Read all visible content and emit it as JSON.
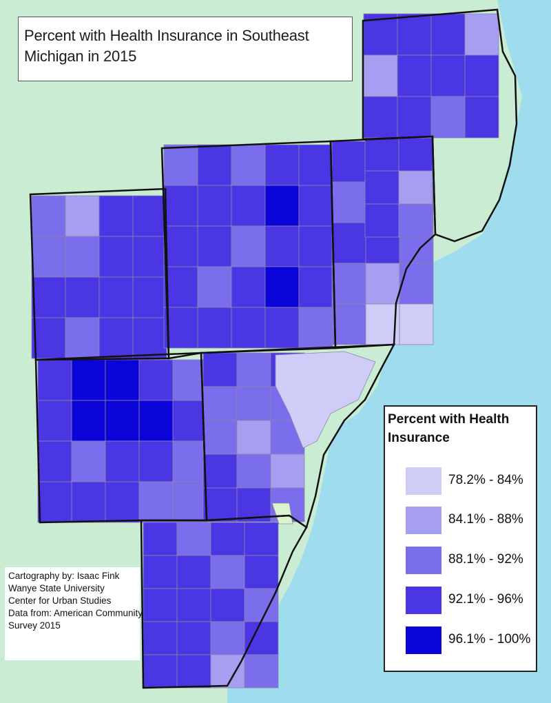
{
  "title": "Percent with Health Insurance in Southeast Michigan in 2015",
  "legend": {
    "title": "Percent with Health Insurance",
    "items": [
      {
        "label": "78.2% - 84%",
        "color": "#cfcdf8"
      },
      {
        "label": "84.1% - 88%",
        "color": "#a59ef1"
      },
      {
        "label": "88.1% - 92%",
        "color": "#7a6eec"
      },
      {
        "label": "92.1% - 96%",
        "color": "#4a37e3"
      },
      {
        "label": "96.1% - 100%",
        "color": "#0a04d8"
      }
    ]
  },
  "credits": [
    "Cartography by: Isaac Fink",
    "Wanye State University",
    "Center for Urban Studies",
    "Data from: American Community",
    "Survey 2015"
  ],
  "colors": {
    "land_outside": "#c9ecd3",
    "water": "#9edcee",
    "county_border": "#111111",
    "tract_border": "#8a86a8",
    "special": "#d9f4cf"
  }
}
